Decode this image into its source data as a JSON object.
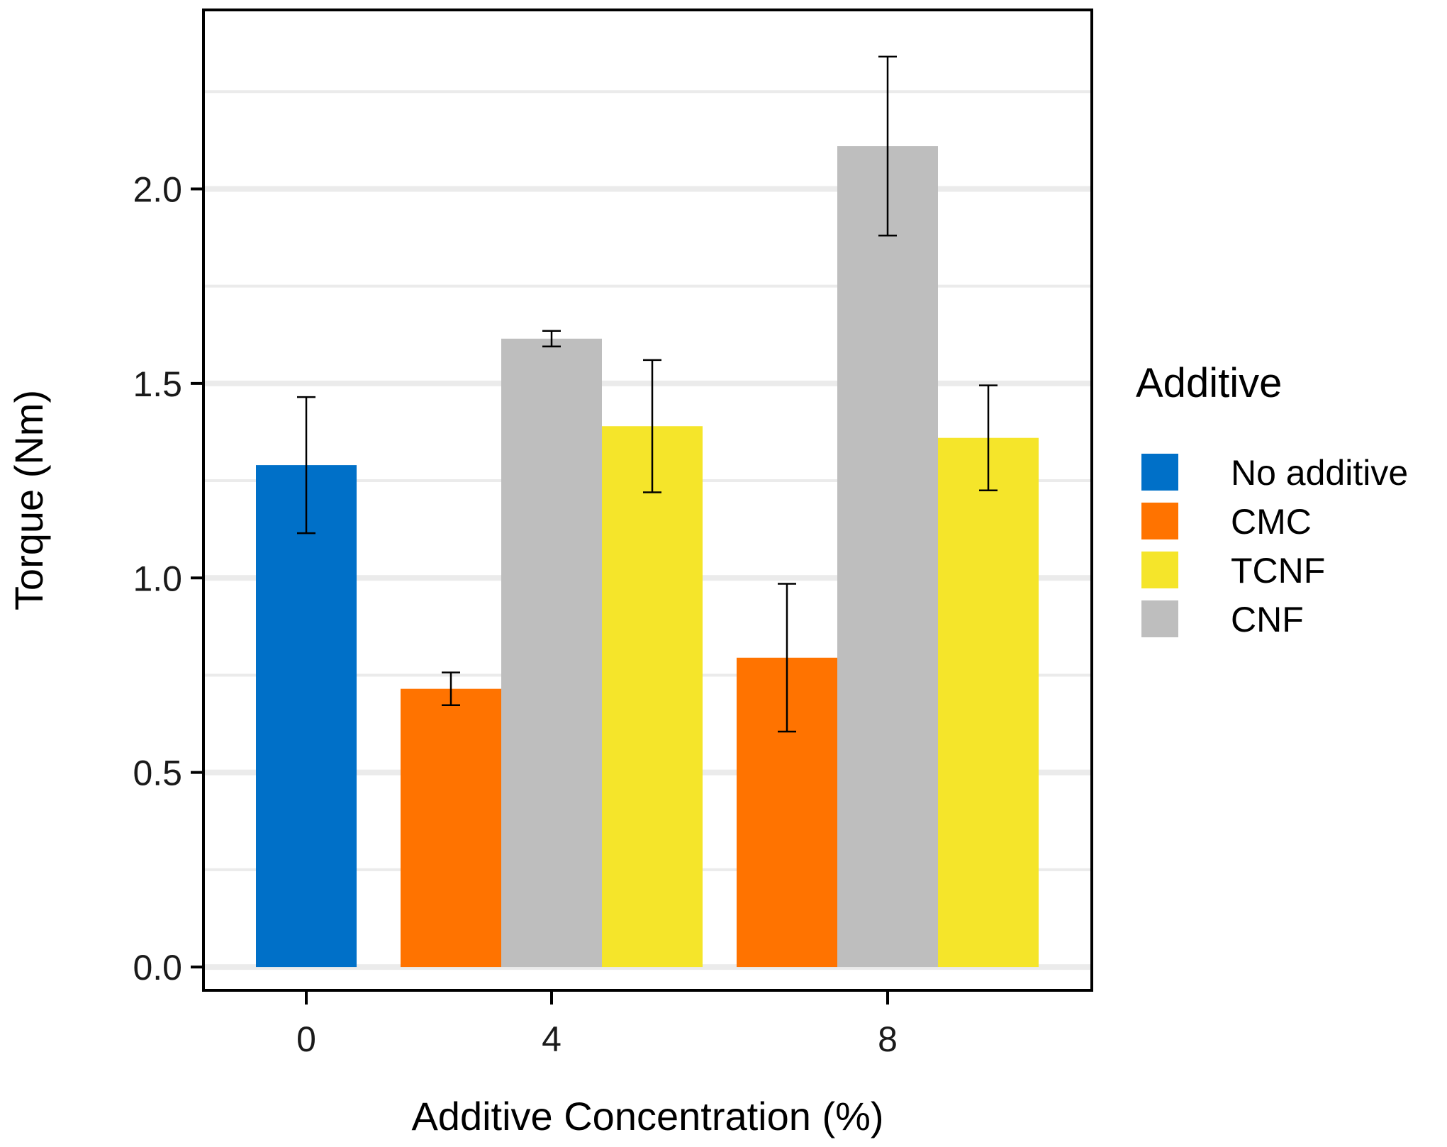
{
  "chart_data": {
    "type": "bar",
    "title": "",
    "xlabel": "Additive Concentration (%)",
    "ylabel": "Torque (Nm)",
    "ylim": [
      -0.06,
      2.46
    ],
    "yticks": [
      0.0,
      0.5,
      1.0,
      1.5,
      2.0
    ],
    "ytick_labels": [
      "0.0",
      "0.5",
      "1.0",
      "1.5",
      "2.0"
    ],
    "minor_gridlines": [
      0.25,
      0.75,
      1.25,
      1.75,
      2.25
    ],
    "categories": [
      "0",
      "4",
      "8"
    ],
    "grid": "horizontal",
    "legend": {
      "title": "Additive",
      "position": "right"
    },
    "series": [
      {
        "name": "No additive",
        "color": "#0070C8",
        "values": [
          1.29,
          null,
          null
        ],
        "errors": [
          0.175,
          null,
          null
        ]
      },
      {
        "name": "CMC",
        "color": "#FF7300",
        "values": [
          null,
          0.715,
          0.795
        ],
        "errors": [
          null,
          0.042,
          0.19
        ]
      },
      {
        "name": "TCNF",
        "color": "#F5E52A",
        "values": [
          null,
          1.39,
          1.36
        ],
        "errors": [
          null,
          0.17,
          0.135
        ]
      },
      {
        "name": "CNF",
        "color": "#BEBEBE",
        "values": [
          null,
          1.615,
          2.11
        ],
        "errors": [
          null,
          0.02,
          0.23
        ]
      }
    ],
    "bar_order": {
      "0": [
        "No additive"
      ],
      "4": [
        "CMC",
        "CNF",
        "TCNF"
      ],
      "8": [
        "CMC",
        "CNF",
        "TCNF"
      ]
    }
  }
}
